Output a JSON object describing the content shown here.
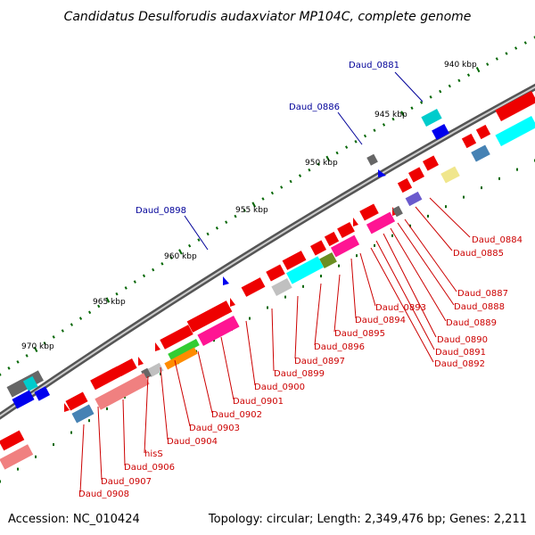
{
  "title": "Candidatus Desulforudis audaxviator MP104C, complete genome",
  "footer": {
    "accession": "Accession: NC_010424",
    "summary": "Topology: circular; Length: 2,349,476 bp; Genes: 2,211"
  },
  "ticks": [
    "940 kbp",
    "945 kbp",
    "950 kbp",
    "955 kbp",
    "960 kbp",
    "965 kbp",
    "970 kbp"
  ],
  "labels_top": [
    "Daud_0881",
    "Daud_0886",
    "Daud_0898"
  ],
  "labels_bottom": [
    "Daud_0884",
    "Daud_0885",
    "Daud_0887",
    "Daud_0888",
    "Daud_0889",
    "Daud_0890",
    "Daud_0891",
    "Daud_0892",
    "Daud_0893",
    "Daud_0894",
    "Daud_0895",
    "Daud_0896",
    "Daud_0897",
    "Daud_0899",
    "Daud_0900",
    "Daud_0901",
    "Daud_0902",
    "Daud_0903",
    "Daud_0904",
    "hisS",
    "Daud_0906",
    "Daud_0907",
    "Daud_0908"
  ],
  "colors": {
    "backbone": "#888888",
    "cds": "#ee0000",
    "cds_light": "#f08080",
    "label_red": "#cc0000",
    "label_blue": "#000099",
    "tick": "#006600"
  }
}
